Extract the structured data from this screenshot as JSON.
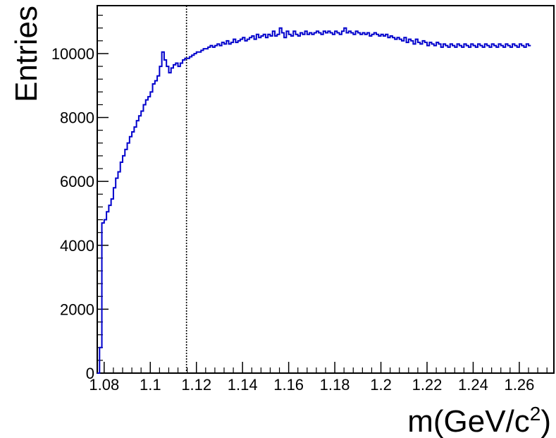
{
  "chart_data": {
    "type": "histogram",
    "xlabel_main": "m(GeV/c",
    "xlabel_sup": "2",
    "xlabel_close": ")",
    "ylabel": "Entries",
    "xlim": [
      1.077,
      1.275
    ],
    "ylim": [
      0,
      11500
    ],
    "bin_width": 0.001,
    "x_start": 1.077,
    "x_ticks": [
      1.08,
      1.1,
      1.12,
      1.14,
      1.16,
      1.18,
      1.2,
      1.22,
      1.24,
      1.26
    ],
    "x_tick_labels": [
      "1.08",
      "1.1",
      "1.12",
      "1.14",
      "1.16",
      "1.18",
      "1.2",
      "1.22",
      "1.24",
      "1.26"
    ],
    "y_ticks": [
      0,
      2000,
      4000,
      6000,
      8000,
      10000
    ],
    "y_tick_labels": [
      "0",
      "2000",
      "4000",
      "6000",
      "8000",
      "10000"
    ],
    "vline_x": 1.1157,
    "line_color": "#0000cc",
    "values": [
      0,
      800,
      4700,
      4800,
      5050,
      5250,
      5450,
      5800,
      6100,
      6300,
      6600,
      6800,
      7000,
      7200,
      7400,
      7550,
      7700,
      7900,
      8050,
      8200,
      8400,
      8550,
      8650,
      8800,
      9050,
      9150,
      9300,
      9600,
      10050,
      9800,
      9600,
      9400,
      9550,
      9650,
      9700,
      9600,
      9700,
      9800,
      9850,
      9850,
      9900,
      9950,
      10000,
      10050,
      10050,
      10100,
      10150,
      10150,
      10200,
      10250,
      10200,
      10250,
      10300,
      10250,
      10350,
      10300,
      10400,
      10300,
      10350,
      10450,
      10350,
      10400,
      10450,
      10500,
      10400,
      10450,
      10500,
      10550,
      10450,
      10600,
      10500,
      10550,
      10600,
      10500,
      10600,
      10550,
      10700,
      10550,
      10600,
      10800,
      10650,
      10500,
      10700,
      10600,
      10550,
      10700,
      10600,
      10550,
      10650,
      10600,
      10700,
      10600,
      10650,
      10600,
      10650,
      10700,
      10650,
      10600,
      10700,
      10650,
      10700,
      10650,
      10600,
      10700,
      10650,
      10600,
      10700,
      10800,
      10650,
      10700,
      10650,
      10600,
      10700,
      10650,
      10600,
      10650,
      10600,
      10650,
      10550,
      10600,
      10650,
      10600,
      10550,
      10600,
      10550,
      10600,
      10500,
      10550,
      10500,
      10450,
      10500,
      10450,
      10400,
      10500,
      10350,
      10450,
      10400,
      10300,
      10450,
      10350,
      10300,
      10400,
      10350,
      10250,
      10350,
      10300,
      10250,
      10350,
      10300,
      10200,
      10300,
      10250,
      10200,
      10300,
      10250,
      10200,
      10300,
      10250,
      10200,
      10300,
      10250,
      10200,
      10300,
      10250,
      10200,
      10300,
      10250,
      10200,
      10300,
      10250,
      10200,
      10300,
      10250,
      10200,
      10300,
      10250,
      10200,
      10300,
      10250,
      10200,
      10300,
      10250,
      10200,
      10300,
      10250,
      10200,
      10300,
      10250
    ]
  }
}
